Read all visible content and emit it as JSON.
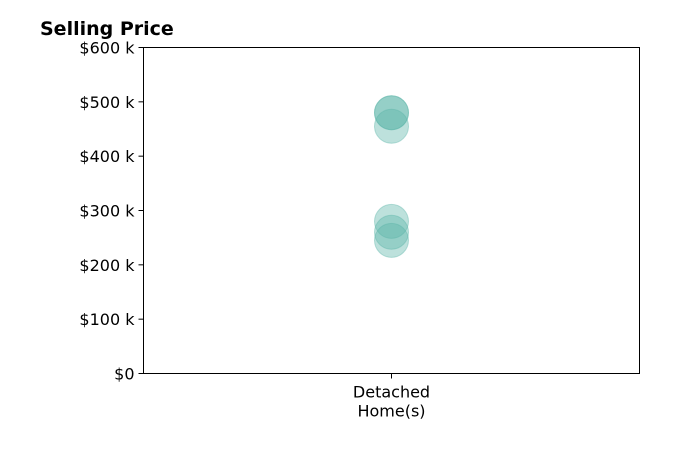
{
  "chart_data": {
    "type": "scatter",
    "title": "Selling Price",
    "xlabel": "",
    "ylabel": "",
    "categories": [
      [
        "Detached",
        "Home(s)"
      ]
    ],
    "ylim": [
      0,
      600000
    ],
    "y_ticks": [
      0,
      100000,
      200000,
      300000,
      400000,
      500000,
      600000
    ],
    "y_tick_labels": [
      "$0",
      "$100 k",
      "$200 k",
      "$300 k",
      "$400 k",
      "$500 k",
      "$600 k"
    ],
    "grid": false,
    "marker_color": "#5bb5a8",
    "marker_opacity": 0.4,
    "points": [
      {
        "category": 0,
        "value": 480000
      },
      {
        "category": 0,
        "value": 480000
      },
      {
        "category": 0,
        "value": 455000
      },
      {
        "category": 0,
        "value": 280000
      },
      {
        "category": 0,
        "value": 260000
      },
      {
        "category": 0,
        "value": 245000
      }
    ]
  }
}
